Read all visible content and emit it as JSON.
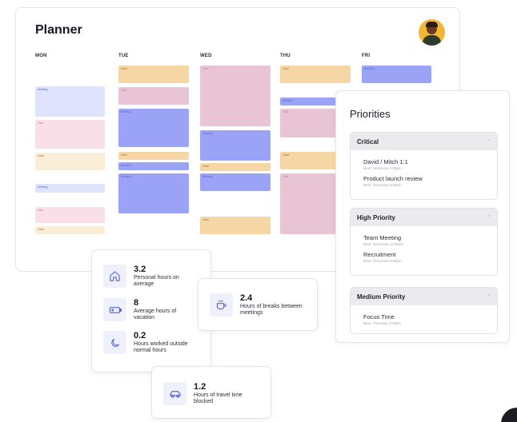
{
  "planner": {
    "title": "Planner",
    "days": [
      "MON",
      "TUE",
      "WED",
      "THU",
      "FRI"
    ],
    "event_labels": {
      "meeting": "Meeting",
      "task": "Task",
      "habit": "Habit"
    }
  },
  "priorities": {
    "title": "Priorities",
    "groups": [
      {
        "title": "Critical",
        "items": [
          {
            "name": "David / Mitch 1:1",
            "next": "Next: Tomorrow 1:00pm"
          },
          {
            "name": "Product launch review",
            "next": "Next: Tomorrow 9:00am"
          }
        ]
      },
      {
        "title": "High Priority",
        "items": [
          {
            "name": "Team Meeting",
            "next": "Next: Tomorrow 11:00am"
          },
          {
            "name": "Recruitment",
            "next": "Next: Tomorrow 4:00pm"
          }
        ]
      },
      {
        "title": "Medium Priority",
        "items": [
          {
            "name": "Focus Time",
            "next": "Next: Thursday 2:00pm"
          }
        ]
      }
    ]
  },
  "stats": {
    "personal": {
      "value": "3.2",
      "label": "Personal hours on average",
      "icon": "home-icon"
    },
    "vacation": {
      "value": "8",
      "label": "Average hours of vacation",
      "icon": "battery-icon"
    },
    "outside": {
      "value": "0.2",
      "label": "Hours worked outside normal hours",
      "icon": "moon-icon"
    },
    "breaks": {
      "value": "2.4",
      "label": "Hours of breaks between meetings",
      "icon": "coffee-icon"
    },
    "travel": {
      "value": "1.2",
      "label": "Hours of travel time blocked",
      "icon": "car-icon"
    }
  },
  "colors": {
    "meeting": "#9aa3f5",
    "task": "#e8c4d4",
    "habit": "#f5d6a4",
    "icon_accent": "#5b63d6"
  }
}
